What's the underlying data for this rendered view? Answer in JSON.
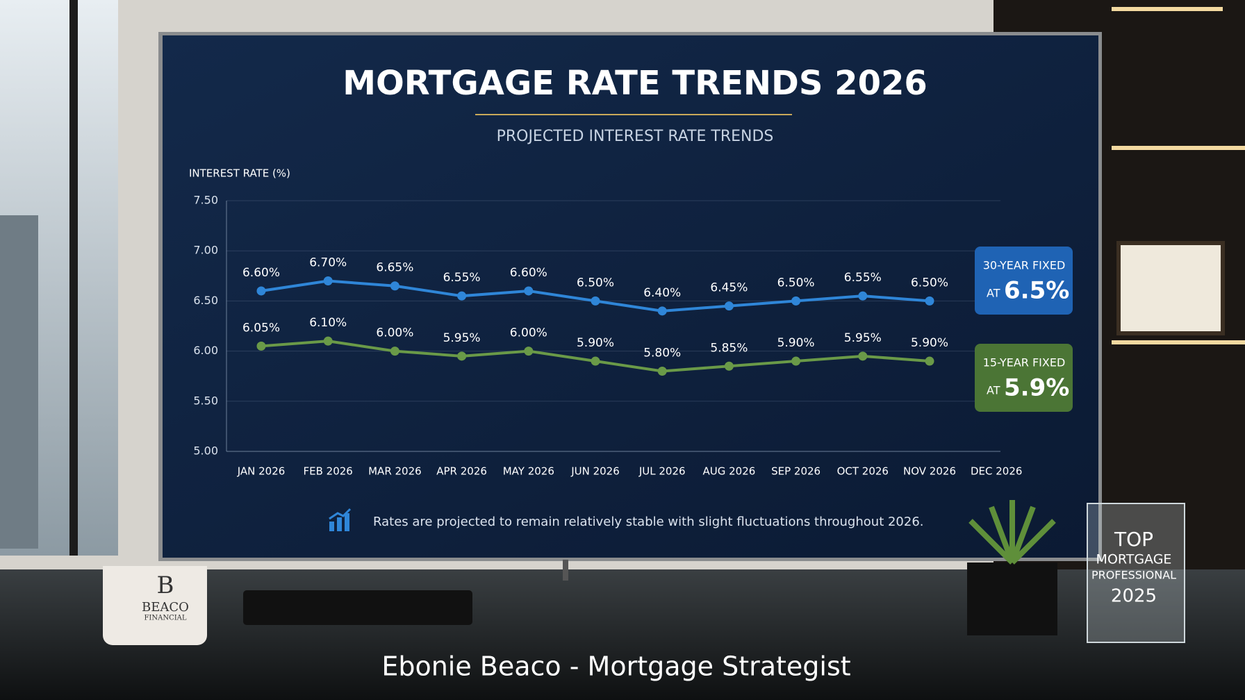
{
  "chart_data": {
    "type": "line",
    "title": "MORTGAGE RATE TRENDS 2026",
    "subtitle": "PROJECTED INTEREST RATE TRENDS",
    "y_label": "INTEREST RATE (%)",
    "categories": [
      "JAN 2026",
      "FEB 2026",
      "MAR 2026",
      "APR 2026",
      "MAY 2026",
      "JUN 2026",
      "JUL 2026",
      "AUG 2026",
      "SEP 2026",
      "OCT 2026",
      "NOV 2026",
      "DEC 2026"
    ],
    "series": [
      {
        "name": "30-YEAR FIXED",
        "color": "#2f86d8",
        "values": [
          6.6,
          6.7,
          6.65,
          6.55,
          6.6,
          6.5,
          6.4,
          6.45,
          6.5,
          6.55,
          6.5,
          null
        ],
        "value_labels": [
          "6.60%",
          "6.70%",
          "6.65%",
          "6.55%",
          "6.60%",
          "6.50%",
          "6.40%",
          "6.45%",
          "6.50%",
          "6.55%",
          "6.50%",
          null
        ],
        "badge_prefix": "AT",
        "badge_value": "6.5%",
        "badge_color": "#1f63b4"
      },
      {
        "name": "15-YEAR FIXED",
        "color": "#6a9a48",
        "values": [
          6.05,
          6.1,
          6.0,
          5.95,
          6.0,
          5.9,
          5.8,
          5.85,
          5.9,
          5.95,
          5.9,
          null
        ],
        "value_labels": [
          "6.05%",
          "6.10%",
          "6.00%",
          "5.95%",
          "6.00%",
          "5.90%",
          "5.80%",
          "5.85%",
          "5.90%",
          "5.95%",
          "5.90%",
          null
        ],
        "badge_prefix": "AT",
        "badge_value": "5.9%",
        "badge_color": "#4b7535"
      }
    ],
    "ylim": [
      5,
      7.5
    ],
    "yticks": [
      {
        "value": 5,
        "label": "5.00"
      },
      {
        "value": 5.5,
        "label": "5.50"
      },
      {
        "value": 6,
        "label": "6.00"
      },
      {
        "value": 6.5,
        "label": "6.50"
      },
      {
        "value": 7,
        "label": "7.00"
      },
      {
        "value": 7.5,
        "label": "7.50"
      }
    ],
    "grid": true,
    "note": "Rates are projected to remain relatively stable with slight fluctuations throughout 2026."
  },
  "scene": {
    "caption": "Ebonie Beaco - Mortgage Strategist",
    "mug": [
      "B",
      "BEACO",
      "FINANCIAL"
    ],
    "award": [
      "TOP",
      "MORTGAGE",
      "PROFESSIONAL",
      "2025"
    ]
  }
}
